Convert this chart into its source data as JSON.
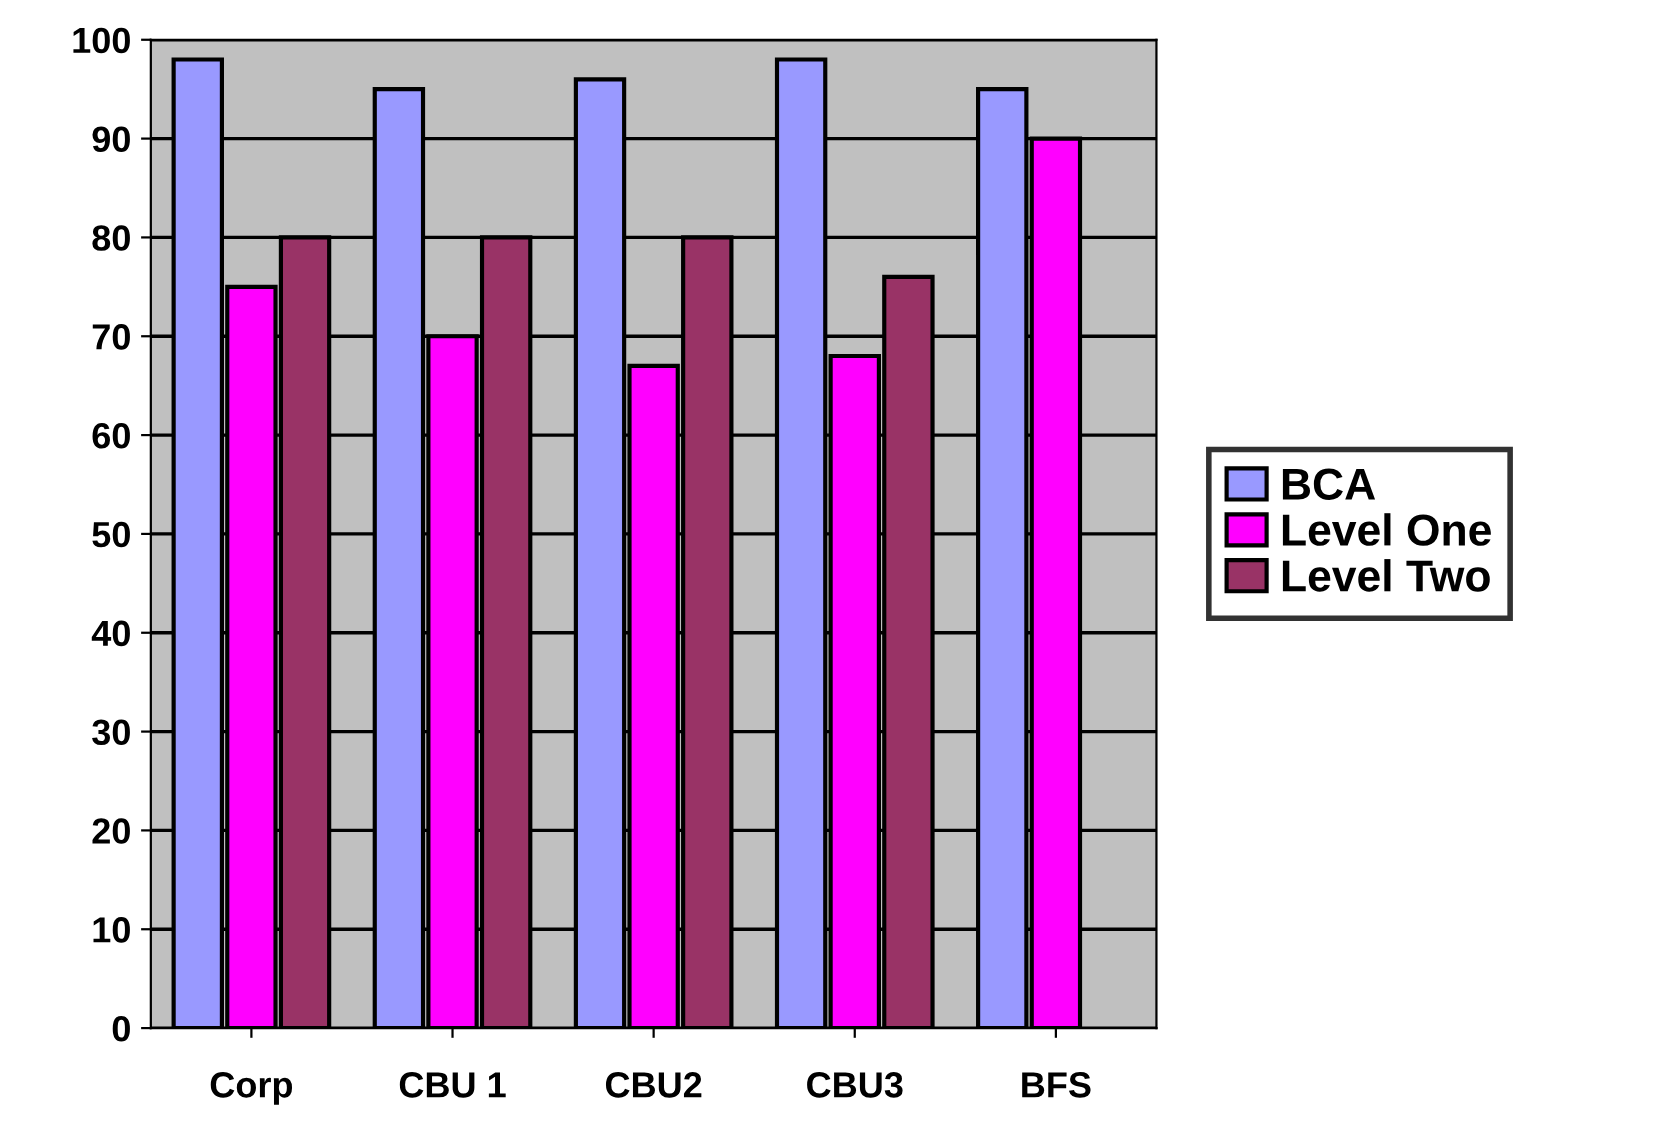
{
  "chart_data": {
    "type": "bar",
    "categories": [
      "Corp",
      "CBU 1",
      "CBU2",
      "CBU3",
      "BFS"
    ],
    "series": [
      {
        "name": "BCA",
        "color": "#9999ff",
        "values": [
          98,
          95,
          96,
          98,
          95
        ]
      },
      {
        "name": "Level One",
        "color": "#ff00ff",
        "values": [
          75,
          70,
          67,
          68,
          90
        ]
      },
      {
        "name": "Level Two",
        "color": "#993366",
        "values": [
          80,
          80,
          80,
          76,
          null
        ]
      }
    ],
    "ylim": [
      0,
      100
    ],
    "yticks": [
      0,
      10,
      20,
      30,
      40,
      50,
      60,
      70,
      80,
      90,
      100
    ],
    "grid": "y",
    "legend": "right"
  }
}
